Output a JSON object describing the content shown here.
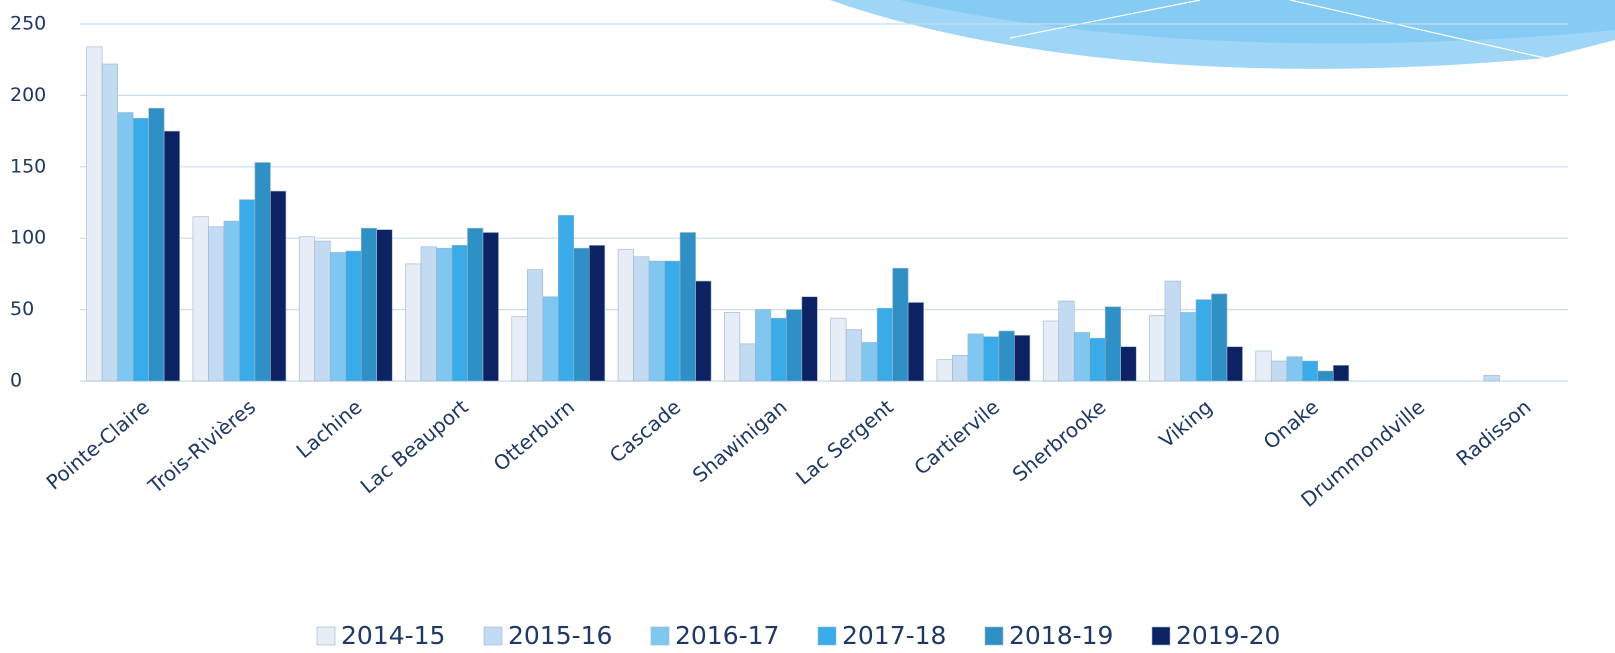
{
  "chart_data": {
    "type": "bar",
    "categories": [
      "Pointe-Claire",
      "Trois-Rivières",
      "Lachine",
      "Lac Beauport",
      "Otterburn",
      "Cascade",
      "Shawinigan",
      "Lac Sergent",
      "Cartiervile",
      "Sherbrooke",
      "Viking",
      "Onake",
      "Drummondville",
      "Radisson"
    ],
    "series": [
      {
        "name": "2014-15",
        "color": "#e6edf6",
        "values": [
          234,
          115,
          101,
          82,
          45,
          92,
          48,
          44,
          15,
          42,
          46,
          21,
          0,
          0
        ]
      },
      {
        "name": "2015-16",
        "color": "#c2dbf2",
        "values": [
          222,
          108,
          98,
          94,
          78,
          87,
          26,
          36,
          18,
          56,
          70,
          14,
          0,
          4
        ]
      },
      {
        "name": "2016-17",
        "color": "#7fc6f1",
        "values": [
          188,
          112,
          90,
          93,
          59,
          84,
          50,
          27,
          33,
          34,
          48,
          17,
          0,
          0
        ]
      },
      {
        "name": "2017-18",
        "color": "#38abe8",
        "values": [
          184,
          127,
          91,
          95,
          116,
          84,
          44,
          51,
          31,
          30,
          57,
          14,
          0,
          0
        ]
      },
      {
        "name": "2018-19",
        "color": "#2f90c6",
        "values": [
          191,
          153,
          107,
          107,
          93,
          104,
          50,
          79,
          35,
          52,
          61,
          7,
          0,
          0
        ]
      },
      {
        "name": "2019-20",
        "color": "#0c2262",
        "values": [
          175,
          133,
          106,
          104,
          95,
          70,
          59,
          55,
          32,
          24,
          24,
          11,
          0,
          0
        ]
      }
    ],
    "ylim": [
      0,
      250
    ],
    "yticks": [
      0,
      50,
      100,
      150,
      200,
      250
    ],
    "grid": true,
    "legend": "bottom"
  }
}
